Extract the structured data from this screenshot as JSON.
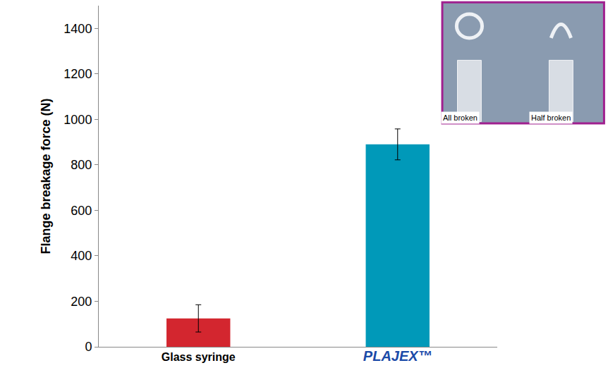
{
  "chart_data": {
    "type": "bar",
    "y_label": "Flange breakage force (N)",
    "categories": [
      "Glass syringe",
      "PLAJEX™"
    ],
    "values": [
      125,
      890
    ],
    "errors": [
      60,
      68
    ],
    "colors": [
      "#d3262f",
      "#0099b9"
    ],
    "ylim": [
      0,
      1500
    ],
    "yticks": [
      0,
      200,
      400,
      600,
      800,
      1000,
      1200,
      1400
    ],
    "grid": false,
    "data_labels": false,
    "annotations": [
      "All broken",
      "Half broken"
    ]
  }
}
